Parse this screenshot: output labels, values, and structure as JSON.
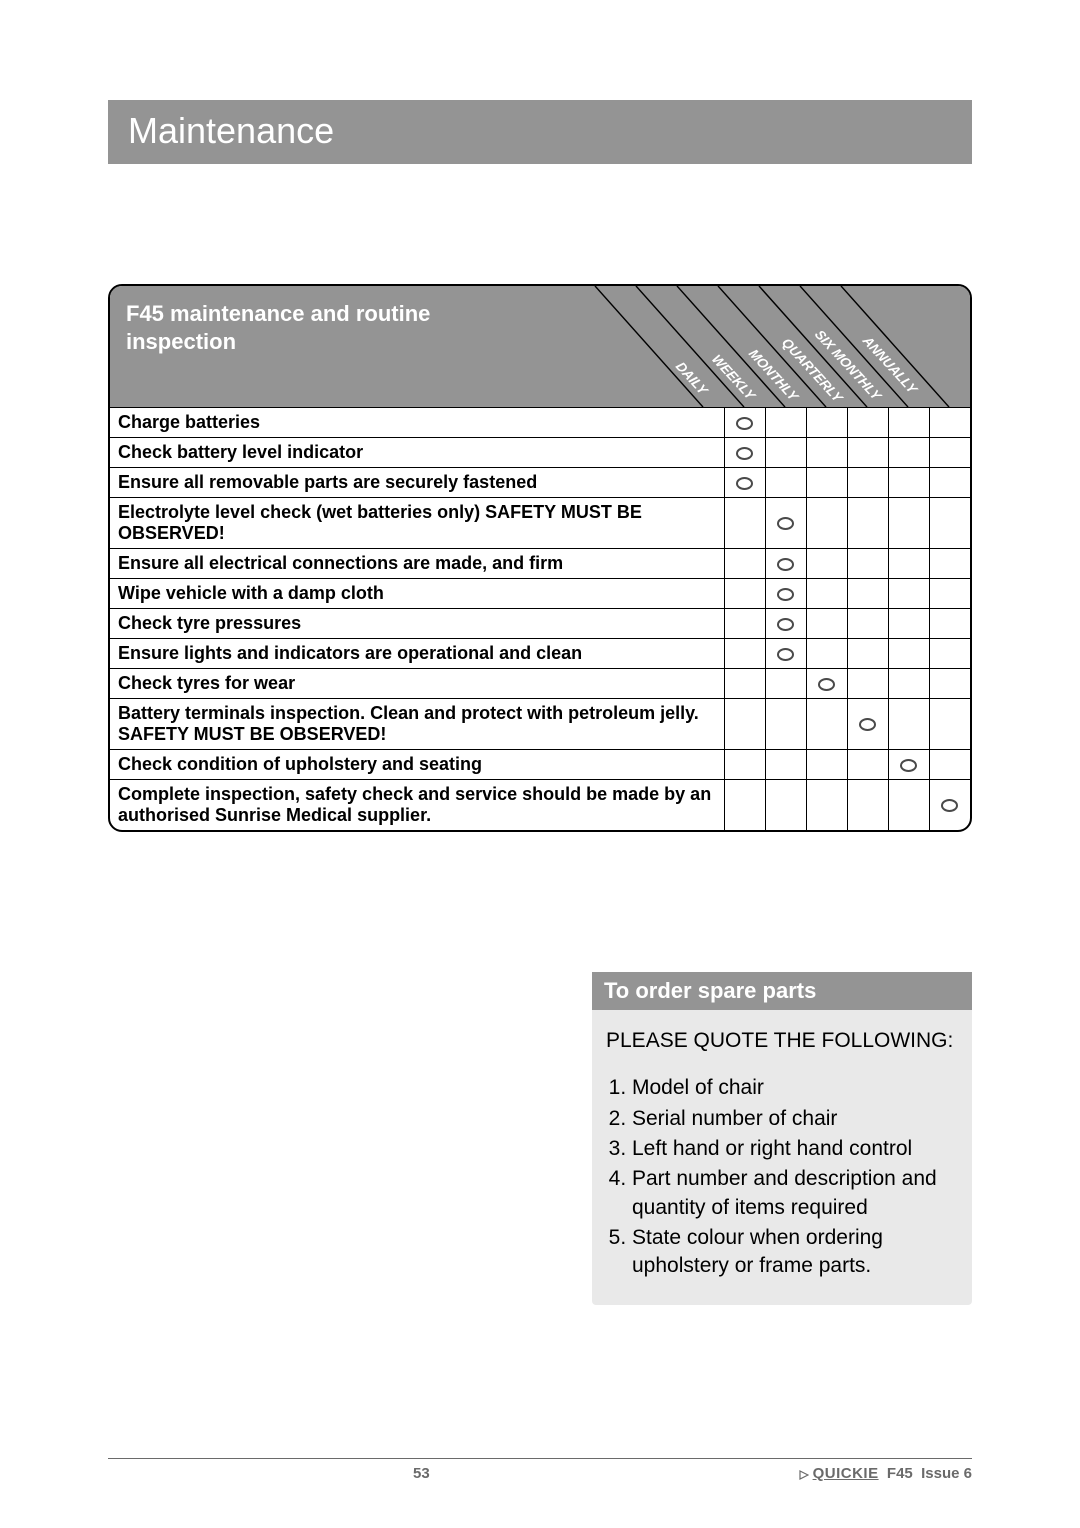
{
  "page_title": "Maintenance",
  "maint_table": {
    "heading_line1": "F45 maintenance and routine",
    "heading_line2": "inspection",
    "periods": [
      "DAILY",
      "WEEKLY",
      "MONTHLY",
      "QUARTERLY",
      "SIX MONTHLY",
      "ANNUALLY"
    ],
    "rows": [
      {
        "task": "Charge batteries",
        "period": 0
      },
      {
        "task": "Check battery level indicator",
        "period": 0
      },
      {
        "task": "Ensure all removable parts are securely fastened",
        "period": 0
      },
      {
        "task": "Electrolyte level check (wet batteries only)\nSAFETY MUST BE OBSERVED!",
        "period": 1
      },
      {
        "task": "Ensure all electrical connections are made, and firm",
        "period": 1
      },
      {
        "task": "Wipe vehicle with a damp cloth",
        "period": 1
      },
      {
        "task": "Check tyre pressures",
        "period": 1
      },
      {
        "task": "Ensure lights and indicators\nare operational and clean",
        "period": 1
      },
      {
        "task": "Check tyres for wear",
        "period": 2
      },
      {
        "task": "Battery terminals inspection. Clean and protect with petroleum jelly. SAFETY MUST BE OBSERVED!",
        "period": 3
      },
      {
        "task": "Check condition of upholstery and seating",
        "period": 4
      },
      {
        "task": "Complete inspection, safety check and service should be made by an authorised Sunrise Medical supplier.",
        "period": 5
      }
    ]
  },
  "order": {
    "heading": "To order spare parts",
    "lead": "PLEASE QUOTE THE FOLLOWING:",
    "items": [
      "Model of chair",
      "Serial number of chair",
      "Left hand or right hand control",
      "Part number and description and quantity of items required",
      "State colour when ordering upholstery or frame parts."
    ]
  },
  "footer": {
    "page_number": "53",
    "brand": "QUICKIE",
    "model": "F45",
    "issue": "Issue 6"
  },
  "colors": {
    "grey_bar": "#949494",
    "light_grey_box": "#e9e9e9",
    "text_grey": "#6a6a6a",
    "dot_border": "#4a4a4a"
  }
}
